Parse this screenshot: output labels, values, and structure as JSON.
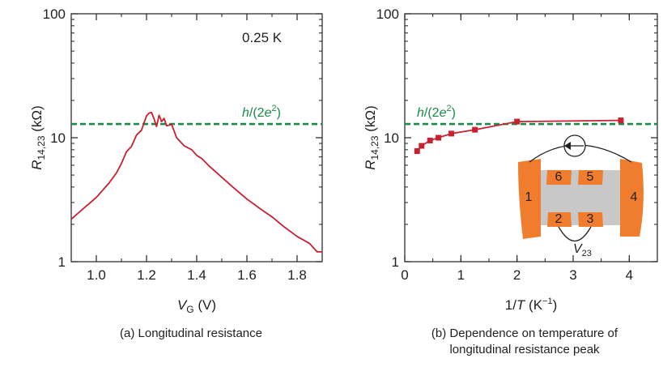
{
  "chart_data": [
    {
      "type": "line",
      "panel": "a",
      "caption": "(a) Longitudinal resistance",
      "xlabel_main": "V",
      "xlabel_sub": "G",
      "xlabel_unit": "(V)",
      "ylabel_main": "R",
      "ylabel_sub": "14,23",
      "ylabel_unit": "(kΩ)",
      "annotation": "0.25 K",
      "reference_line": {
        "label": "h/(2e²)",
        "label_parts": [
          "h",
          "/(2",
          "e",
          "2",
          ")"
        ],
        "value": 12.9,
        "color": "#1a8a4a"
      },
      "xlim": [
        0.9,
        1.9
      ],
      "ylim": [
        1,
        100
      ],
      "yscale": "log",
      "x_ticks": [
        "1.0",
        "1.2",
        "1.4",
        "1.6",
        "1.8"
      ],
      "x_tick_values": [
        1.0,
        1.2,
        1.4,
        1.6,
        1.8
      ],
      "y_ticks": [
        "1",
        "10",
        "100"
      ],
      "y_tick_values": [
        1,
        10,
        100
      ],
      "series": [
        {
          "color": "#c8202f",
          "x": [
            0.9,
            0.95,
            1.0,
            1.05,
            1.08,
            1.1,
            1.12,
            1.14,
            1.16,
            1.18,
            1.2,
            1.21,
            1.22,
            1.23,
            1.24,
            1.25,
            1.26,
            1.27,
            1.28,
            1.3,
            1.32,
            1.35,
            1.38,
            1.4,
            1.42,
            1.45,
            1.5,
            1.55,
            1.6,
            1.65,
            1.7,
            1.75,
            1.8,
            1.85,
            1.88,
            1.9
          ],
          "y": [
            2.2,
            2.7,
            3.3,
            4.3,
            5.2,
            6.2,
            7.7,
            8.5,
            10.5,
            11.5,
            15.0,
            15.8,
            16.0,
            14.2,
            12.3,
            15.2,
            13.5,
            14.3,
            12.5,
            12.8,
            10.0,
            8.6,
            8.0,
            7.2,
            6.8,
            5.9,
            4.8,
            3.9,
            3.2,
            2.7,
            2.3,
            1.9,
            1.6,
            1.4,
            1.2,
            1.2
          ]
        }
      ]
    },
    {
      "type": "line",
      "panel": "b",
      "caption_lines": [
        "(b) Dependence on temperature of",
        "longitudinal resistance peak"
      ],
      "xlabel_main": "1/",
      "xlabel_var": "T",
      "xlabel_unit": "(K",
      "xlabel_sup": "−1",
      "xlabel_close": ")",
      "ylabel_main": "R",
      "ylabel_sub": "14,23",
      "ylabel_unit": "(kΩ)",
      "reference_line": {
        "label": "h/(2e²)",
        "label_parts": [
          "h",
          "/(2",
          "e",
          "2",
          ")"
        ],
        "value": 12.9,
        "color": "#1a8a4a"
      },
      "xlim": [
        0,
        4.5
      ],
      "ylim": [
        1,
        100
      ],
      "yscale": "log",
      "x_ticks": [
        "0",
        "1",
        "2",
        "3",
        "4"
      ],
      "x_tick_values": [
        0,
        1,
        2,
        3,
        4
      ],
      "y_ticks": [
        "1",
        "10",
        "100"
      ],
      "y_tick_values": [
        1,
        10,
        100
      ],
      "series": [
        {
          "color": "#c8202f",
          "marker": "square",
          "x": [
            0.22,
            0.3,
            0.45,
            0.6,
            0.83,
            1.25,
            2.0,
            3.85
          ],
          "y": [
            7.8,
            8.6,
            9.5,
            10.0,
            10.8,
            11.6,
            13.5,
            13.8
          ]
        }
      ],
      "inset": {
        "description_labels": [
          "1",
          "2",
          "3",
          "4",
          "5",
          "6"
        ],
        "voltage_label_main": "V",
        "voltage_label_sub": "23",
        "contact_color": "#f07d2e",
        "channel_color": "#c8c8c8"
      }
    }
  ]
}
